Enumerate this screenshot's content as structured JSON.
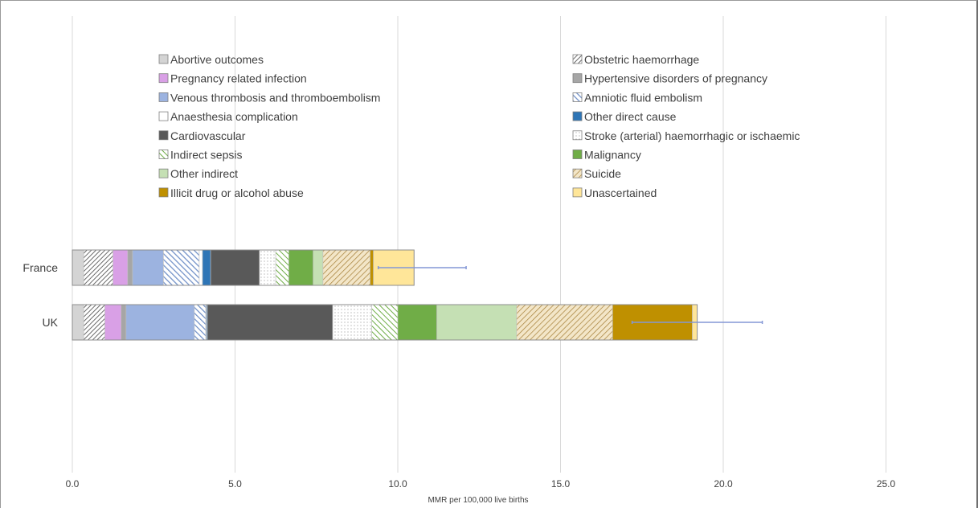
{
  "chart_data": {
    "type": "bar",
    "orientation": "horizontal",
    "stacked": true,
    "title": "",
    "xlabel": "MMR per 100,000 live births",
    "ylabel": "",
    "xlim": [
      0,
      27.5
    ],
    "x_ticks": [
      0,
      5,
      10,
      15,
      20,
      25
    ],
    "x_tick_labels": [
      "0.0",
      "5.0",
      "10.0",
      "15.0",
      "20.0",
      "25.0"
    ],
    "grid": "vertical",
    "legend_position": "top",
    "categories": [
      "France",
      "UK"
    ],
    "series": [
      {
        "name": "Abortive outcomes",
        "values": [
          0.35,
          0.35
        ],
        "color": "#d4d4d4",
        "pattern": "solid"
      },
      {
        "name": "Obstetric haemorrhage",
        "values": [
          0.9,
          0.65
        ],
        "color": "#707070",
        "pattern": "hatch-dense"
      },
      {
        "name": "Pregnancy related infection",
        "values": [
          0.45,
          0.5
        ],
        "color": "#d9a0e6",
        "pattern": "solid"
      },
      {
        "name": "Hypertensive disorders of pregnancy",
        "values": [
          0.15,
          0.15
        ],
        "color": "#a6a6a6",
        "pattern": "solid"
      },
      {
        "name": "Venous thrombosis and thromboembolism",
        "values": [
          0.95,
          2.1
        ],
        "color": "#9cb3e0",
        "pattern": "solid"
      },
      {
        "name": "Amniotic fluid embolism",
        "values": [
          1.1,
          0.35
        ],
        "color": "#6f8fc7",
        "pattern": "hatch-blue"
      },
      {
        "name": "Anaesthesia complication",
        "values": [
          0.1,
          0.02
        ],
        "color": "#ffffff",
        "pattern": "solid"
      },
      {
        "name": "Other direct cause",
        "values": [
          0.25,
          0.03
        ],
        "color": "#2e75b6",
        "pattern": "solid"
      },
      {
        "name": "Cardiovascular",
        "values": [
          1.5,
          3.85
        ],
        "color": "#595959",
        "pattern": "solid"
      },
      {
        "name": "Stroke (arterial) haemorrhagic or ischaemic",
        "values": [
          0.5,
          1.2
        ],
        "color": "#ffffff",
        "pattern": "dots"
      },
      {
        "name": "Indirect sepsis",
        "values": [
          0.4,
          0.8
        ],
        "color": "#70ad47",
        "pattern": "hatch-green"
      },
      {
        "name": "Malignancy",
        "values": [
          0.75,
          1.2
        ],
        "color": "#70ad47",
        "pattern": "solid"
      },
      {
        "name": "Other indirect",
        "values": [
          0.3,
          2.45
        ],
        "color": "#c5e0b4",
        "pattern": "solid"
      },
      {
        "name": "Suicide",
        "values": [
          1.45,
          2.95
        ],
        "color": "#c9a868",
        "pattern": "hatch-tan"
      },
      {
        "name": "Illicit drug or alcohol abuse",
        "values": [
          0.1,
          2.45
        ],
        "color": "#bf9000",
        "pattern": "solid"
      },
      {
        "name": "Unascertained",
        "values": [
          1.25,
          0.15
        ],
        "color": "#ffe699",
        "pattern": "solid"
      }
    ],
    "error_bars": [
      {
        "category": "France",
        "low": 9.4,
        "high": 12.1
      },
      {
        "category": "UK",
        "low": 17.2,
        "high": 21.2
      }
    ],
    "error_bar_color": "#8497d6"
  }
}
